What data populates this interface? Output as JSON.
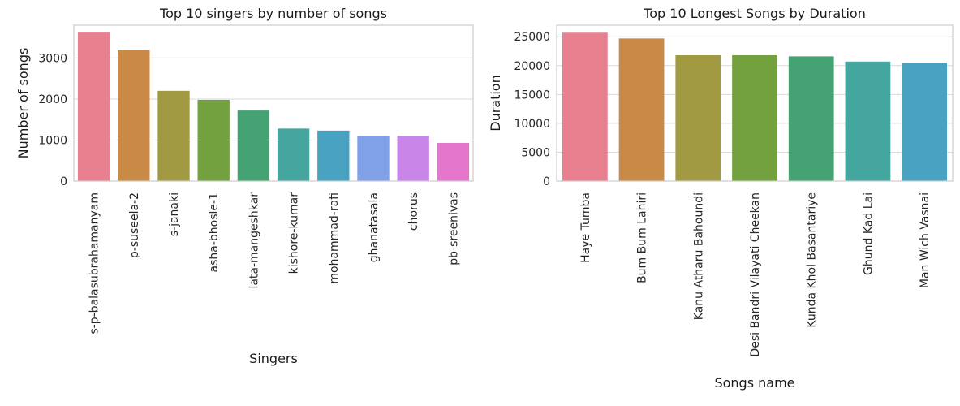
{
  "chart_data": [
    {
      "type": "bar",
      "title": "Top 10 singers by number of songs",
      "xlabel": "Singers",
      "ylabel": "Number of songs",
      "ylim": [
        0,
        3800
      ],
      "yticks": [
        0,
        1000,
        2000,
        3000
      ],
      "grid": true,
      "categories": [
        "s-p-balasubrahamanyam",
        "p-suseela-2",
        "s-janaki",
        "asha-bhosle-1",
        "lata-mangeshkar",
        "kishore-kumar",
        "mohammad-rafi",
        "ghanatasala",
        "chorus",
        "pb-sreenivas"
      ],
      "values": [
        3620,
        3200,
        2200,
        1980,
        1720,
        1280,
        1230,
        1100,
        1100,
        930
      ],
      "colors": [
        "#e8808f",
        "#c98a47",
        "#a19a43",
        "#74a140",
        "#45a373",
        "#45a59f",
        "#4aa2c2",
        "#80a1e8",
        "#c986e8",
        "#e477cc"
      ]
    },
    {
      "type": "bar",
      "title": "Top 10 Longest Songs by Duration",
      "xlabel": "Songs name",
      "ylabel": "Duration",
      "ylim": [
        0,
        27000
      ],
      "yticks": [
        0,
        5000,
        10000,
        15000,
        20000,
        25000
      ],
      "grid": true,
      "categories": [
        "Haye Tumba",
        "Bum Bum Lahiri",
        "Kanu Atharu Bahoundi",
        "Desi Bandri Vilayati Cheekan",
        "Kunda Khol Basantariye",
        "Ghund Kad Lai",
        "Man Wich Vasnai"
      ],
      "values": [
        25700,
        24700,
        21800,
        21800,
        21600,
        20700,
        20500
      ],
      "colors": [
        "#e8808f",
        "#c98a47",
        "#a19a43",
        "#74a140",
        "#45a373",
        "#45a59f",
        "#4aa2c2"
      ]
    }
  ]
}
